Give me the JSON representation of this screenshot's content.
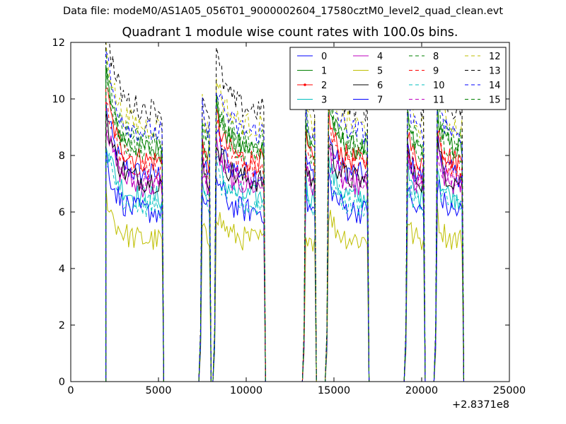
{
  "figure": {
    "suptitle": "Data file: modeM0/AS1A05_056T01_9000002604_17580cztM0_level2_quad_clean.evt"
  },
  "chart_data": {
    "type": "line",
    "title": "Quadrant 1 module wise count rates with 100.0s bins.",
    "xlabel": "",
    "ylabel": "",
    "x_offset_label": "+2.8371e8",
    "xlim": [
      0,
      25000
    ],
    "ylim": [
      0,
      12
    ],
    "x_ticks": [
      0,
      5000,
      10000,
      15000,
      20000,
      25000
    ],
    "x_tick_labels": [
      "0",
      "5000",
      "10000",
      "15000",
      "20000",
      "25000"
    ],
    "y_ticks": [
      0,
      2,
      4,
      6,
      8,
      10,
      12
    ],
    "y_tick_labels": [
      "0",
      "2",
      "4",
      "6",
      "8",
      "10",
      "12"
    ],
    "grid": false,
    "legend_placement": "top-right",
    "legend_columns": 4,
    "series": [
      {
        "name": "0",
        "color": "#0000ff",
        "style": "solid",
        "base": 7.3
      },
      {
        "name": "1",
        "color": "#008000",
        "style": "solid",
        "base": 8.2
      },
      {
        "name": "2",
        "color": "#ff0000",
        "style": "marker",
        "base": 7.8
      },
      {
        "name": "3",
        "color": "#00bfbf",
        "style": "solid",
        "base": 6.5
      },
      {
        "name": "4",
        "color": "#bf00bf",
        "style": "solid",
        "base": 6.9
      },
      {
        "name": "5",
        "color": "#bfbf00",
        "style": "solid",
        "base": 5.0
      },
      {
        "name": "6",
        "color": "#000000",
        "style": "solid",
        "base": 7.1
      },
      {
        "name": "7",
        "color": "#0000ff",
        "style": "solid",
        "base": 6.0
      },
      {
        "name": "8",
        "color": "#008000",
        "style": "dashed",
        "base": 8.5
      },
      {
        "name": "9",
        "color": "#ff0000",
        "style": "dashed",
        "base": 7.6
      },
      {
        "name": "10",
        "color": "#00bfbf",
        "style": "dashed",
        "base": 6.2
      },
      {
        "name": "11",
        "color": "#bf00bf",
        "style": "dashed",
        "base": 7.0
      },
      {
        "name": "12",
        "color": "#bfbf00",
        "style": "dashed",
        "base": 9.0
      },
      {
        "name": "13",
        "color": "#000000",
        "style": "dashed",
        "base": 9.6
      },
      {
        "name": "14",
        "color": "#0000ff",
        "style": "dashed",
        "base": 8.8
      },
      {
        "name": "15",
        "color": "#008000",
        "style": "dashed",
        "base": 8.1
      }
    ],
    "segments": [
      {
        "start": 2000,
        "end": 5200,
        "shape": "decay"
      },
      {
        "start": 7400,
        "end": 7900,
        "shape": "peak"
      },
      {
        "start": 8200,
        "end": 11000,
        "shape": "peak"
      },
      {
        "start": 13300,
        "end": 13900,
        "shape": "peak"
      },
      {
        "start": 14600,
        "end": 16900,
        "shape": "peak"
      },
      {
        "start": 19100,
        "end": 20100,
        "shape": "peak"
      },
      {
        "start": 20800,
        "end": 22300,
        "shape": "peak"
      }
    ]
  }
}
